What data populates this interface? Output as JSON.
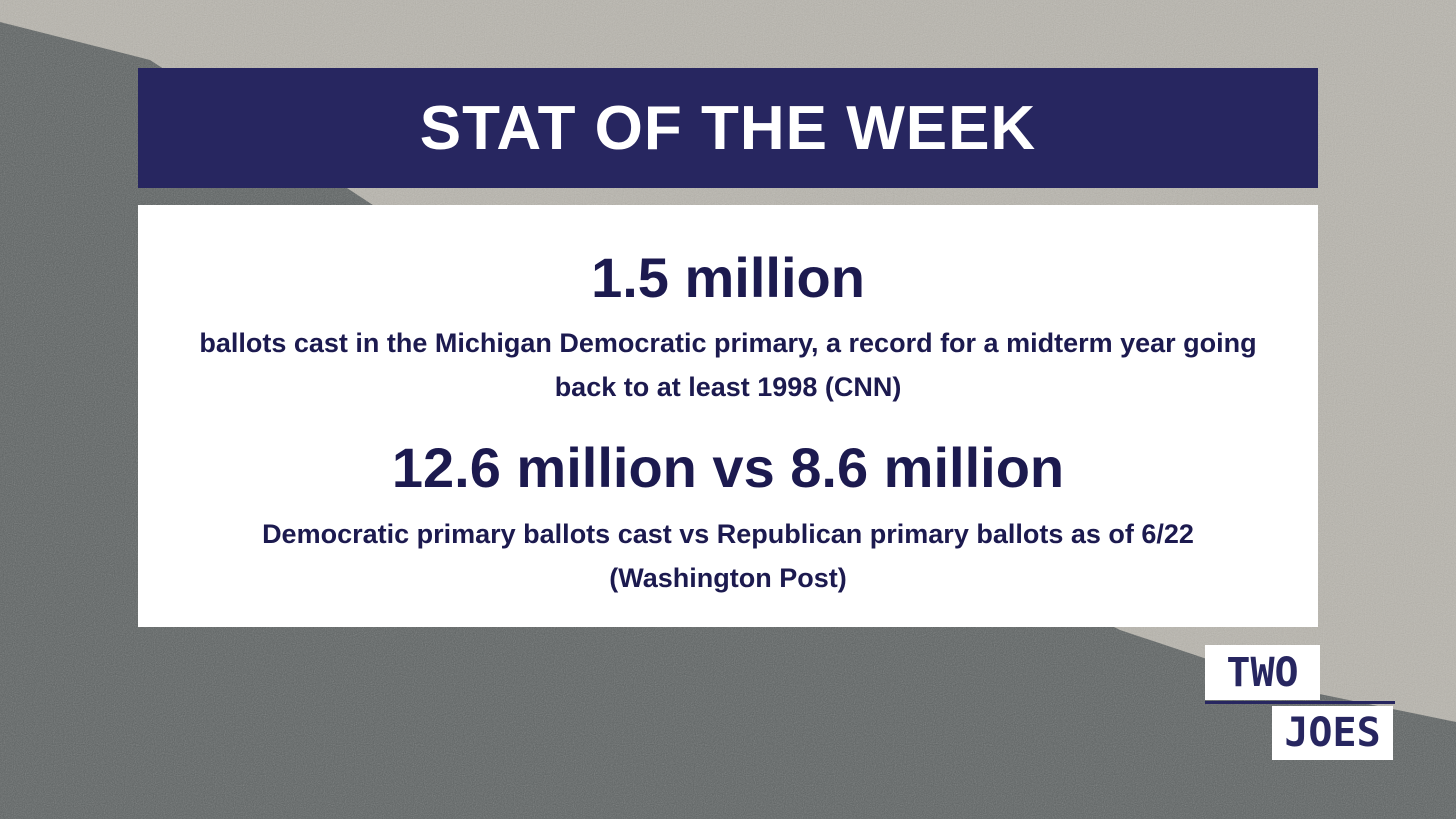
{
  "header": {
    "title": "STAT OF THE WEEK"
  },
  "stats": [
    {
      "figure": "1.5 million",
      "description": "ballots cast in the Michigan Democratic primary, a record for a midterm year going back to at least 1998 (CNN)"
    },
    {
      "figure": "12.6 million vs 8.6 million",
      "description": "Democratic primary ballots cast vs Republican primary ballots as of 6/22 (Washington Post)"
    }
  ],
  "logo": {
    "top": "TWO",
    "bottom": "JOES"
  }
}
